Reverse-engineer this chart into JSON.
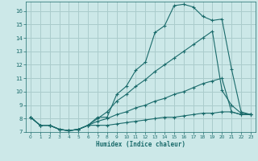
{
  "xlabel": "Humidex (Indice chaleur)",
  "xlim": [
    -0.5,
    23.5
  ],
  "ylim": [
    7.0,
    16.7
  ],
  "yticks": [
    7,
    8,
    9,
    10,
    11,
    12,
    13,
    14,
    15,
    16
  ],
  "xticks": [
    0,
    1,
    2,
    3,
    4,
    5,
    6,
    7,
    8,
    9,
    10,
    11,
    12,
    13,
    14,
    15,
    16,
    17,
    18,
    19,
    20,
    21,
    22,
    23
  ],
  "bg_color": "#cce8e8",
  "grid_color": "#aacccc",
  "line_color": "#1a6b6b",
  "curves": [
    {
      "x": [
        0,
        1,
        2,
        3,
        4,
        5,
        6,
        7,
        8,
        9,
        10,
        11,
        12,
        13,
        14,
        15,
        16,
        17,
        18,
        19,
        20,
        21,
        22,
        23
      ],
      "y": [
        8.1,
        7.5,
        7.5,
        7.2,
        7.1,
        7.2,
        7.5,
        8.1,
        8.1,
        9.8,
        10.4,
        11.6,
        12.2,
        14.4,
        14.9,
        16.4,
        16.5,
        16.3,
        15.6,
        15.3,
        15.4,
        11.7,
        8.5,
        8.3
      ]
    },
    {
      "x": [
        0,
        1,
        2,
        3,
        4,
        5,
        6,
        7,
        8,
        9,
        10,
        11,
        12,
        13,
        14,
        15,
        16,
        17,
        18,
        19,
        20,
        21,
        22,
        23
      ],
      "y": [
        8.1,
        7.5,
        7.5,
        7.2,
        7.1,
        7.2,
        7.5,
        8.0,
        8.5,
        9.3,
        9.8,
        10.4,
        10.9,
        11.5,
        12.0,
        12.5,
        13.0,
        13.5,
        14.0,
        14.5,
        10.1,
        9.0,
        8.4,
        8.3
      ]
    },
    {
      "x": [
        0,
        1,
        2,
        3,
        4,
        5,
        6,
        7,
        8,
        9,
        10,
        11,
        12,
        13,
        14,
        15,
        16,
        17,
        18,
        19,
        20,
        21,
        22,
        23
      ],
      "y": [
        8.1,
        7.5,
        7.5,
        7.2,
        7.1,
        7.2,
        7.5,
        7.8,
        8.0,
        8.3,
        8.5,
        8.8,
        9.0,
        9.3,
        9.5,
        9.8,
        10.0,
        10.3,
        10.6,
        10.8,
        11.0,
        8.5,
        8.3,
        8.3
      ]
    },
    {
      "x": [
        0,
        1,
        2,
        3,
        4,
        5,
        6,
        7,
        8,
        9,
        10,
        11,
        12,
        13,
        14,
        15,
        16,
        17,
        18,
        19,
        20,
        21,
        22,
        23
      ],
      "y": [
        8.1,
        7.5,
        7.5,
        7.2,
        7.1,
        7.2,
        7.5,
        7.5,
        7.5,
        7.6,
        7.7,
        7.8,
        7.9,
        8.0,
        8.1,
        8.1,
        8.2,
        8.3,
        8.4,
        8.4,
        8.5,
        8.5,
        8.3,
        8.3
      ]
    }
  ]
}
